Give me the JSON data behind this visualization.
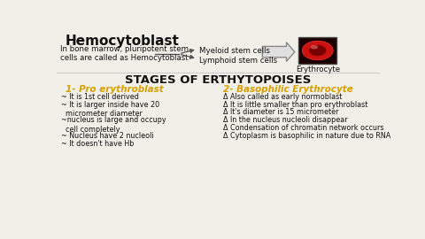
{
  "bg_color": "#f0efe8",
  "title_text": "Hemocytoblast",
  "title_color": "#111111",
  "title_fontsize": 11,
  "desc_text": "In bone marrow, pluripotent stem\ncells are called as Hemocytoblast",
  "desc_color": "#111111",
  "desc_fontsize": 6.2,
  "myeloid_text": "Myeloid stem cells",
  "lymphoid_text": "Lymphoid stem cells",
  "erythrocyte_text": "Erythrocyte",
  "stem_fontsize": 6.2,
  "stages_title": "STAGES OF ERTHYTOPOISES",
  "stages_color": "#111111",
  "stages_fontsize": 9.5,
  "col1_title": "1- Pro erythroblast",
  "col1_color": "#d4a000",
  "col1_fontsize": 7.5,
  "col1_bullets": [
    "~ It is 1st cell derived",
    "~ It is larger inside have 20\n  micrometer diameter",
    "~nucleus is large and occupy\n  cell completely",
    "~ Nucleus have 2 nucleoli",
    "~ It doesn't have Hb"
  ],
  "col2_title": "2- Basophilic Erythrocyte",
  "col2_color": "#d4a000",
  "col2_fontsize": 7.5,
  "col2_bullets": [
    "Δ Also called as early normoblast",
    "Δ It is little smaller than pro erythroblast",
    "Δ It's diameter is 15 micrometer",
    "Δ In the nucleus nucleoli disappear",
    "Δ Condensation of chromatin network occurs",
    "Δ Cytoplasm is basophilic in nature due to RNA"
  ],
  "bullet_color": "#111111",
  "bullet_fontsize": 5.8,
  "arrow_color": "#555555",
  "line_color": "#cccccc",
  "rbc_dark": "#1a0000",
  "rbc_bright": "#cc1111",
  "rbc_inner": "#770000"
}
